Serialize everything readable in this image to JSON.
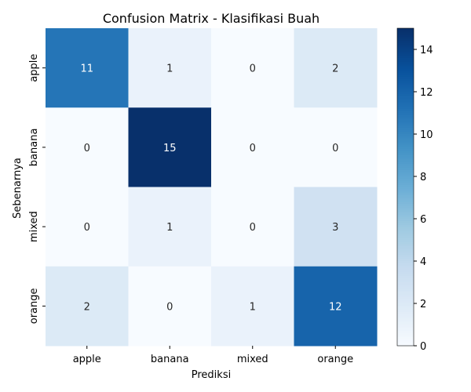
{
  "chart_data": {
    "type": "heatmap",
    "title": "Confusion Matrix - Klasifikasi Buah",
    "xlabel": "Prediksi",
    "ylabel": "Sebenarnya",
    "x_categories": [
      "apple",
      "banana",
      "mixed",
      "orange"
    ],
    "y_categories": [
      "apple",
      "banana",
      "mixed",
      "orange"
    ],
    "values": [
      [
        11,
        1,
        0,
        2
      ],
      [
        0,
        15,
        0,
        0
      ],
      [
        0,
        1,
        0,
        3
      ],
      [
        2,
        0,
        1,
        12
      ]
    ],
    "colormap": "Blues",
    "color_range": [
      0,
      15
    ],
    "colorbar_ticks": [
      0,
      2,
      4,
      6,
      8,
      10,
      12,
      14
    ],
    "annotations": true,
    "grid": false
  }
}
